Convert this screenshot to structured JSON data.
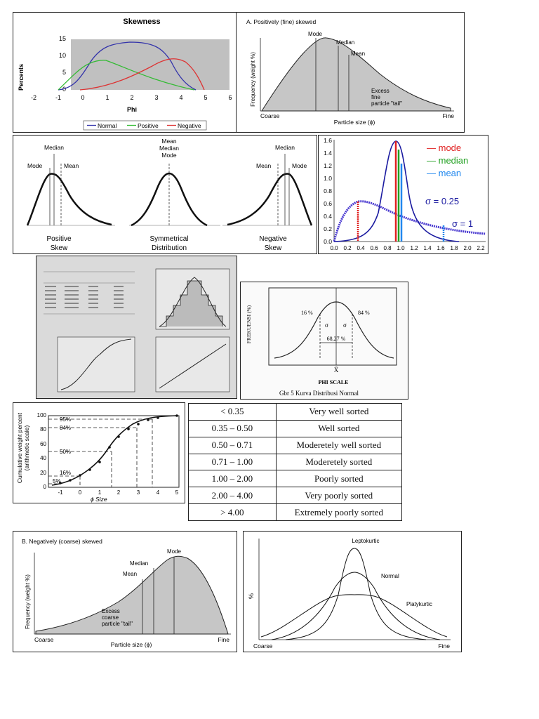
{
  "colors": {
    "normal": "#3333aa",
    "positive": "#33bb33",
    "negative": "#dd3333",
    "mode": "#e02020",
    "median": "#22a022",
    "mean": "#2288ee",
    "curve": "#1a1aa0"
  },
  "skewness_chart": {
    "title": "Skewness",
    "ylabel": "Percents",
    "xlabel": "Phi",
    "legend": [
      "Normal",
      "Positive",
      "Negative"
    ],
    "xticks": [
      "-2",
      "-1",
      "0",
      "1",
      "2",
      "3",
      "4",
      "5",
      "6"
    ],
    "yticks": [
      "0",
      "5",
      "10",
      "15"
    ]
  },
  "pos_skew_panel": {
    "title": "A.  Positively (fine) skewed",
    "ylabel": "Frequency (weight %)",
    "xlabel": "Particle size (ϕ)",
    "left": "Coarse",
    "right": "Fine",
    "mode": "Mode",
    "median": "Median",
    "mean": "Mean",
    "tail": [
      "Excess",
      "fine",
      "particle \"tail\""
    ]
  },
  "skew_types": {
    "positive": {
      "median": "Median",
      "mode": "Mode",
      "mean": "Mean",
      "caption": [
        "Positive",
        "Skew"
      ]
    },
    "symmetric": {
      "labels": [
        "Mean",
        "Median",
        "Mode"
      ],
      "caption": [
        "Symmetrical",
        "Distribution"
      ]
    },
    "negative": {
      "median": "Median",
      "mean": "Mean",
      "mode": "Mode",
      "caption": [
        "Negative",
        "Skew"
      ]
    }
  },
  "lognormal_chart": {
    "yticks": [
      "0.0",
      "0.2",
      "0.4",
      "0.6",
      "0.8",
      "1.0",
      "1.2",
      "1.4",
      "1.6"
    ],
    "xticks": [
      "0.0",
      "0.2",
      "0.4",
      "0.6",
      "0.8",
      "1.0",
      "1.2",
      "1.4",
      "1.6",
      "1.8",
      "2.0",
      "2.2"
    ],
    "legend": [
      "— mode",
      "— median",
      "— mean"
    ],
    "sigma1": "σ = 0.25",
    "sigma2": "σ = 1"
  },
  "normal_curve_panel": {
    "ylabel": "FREKUENSI (%)",
    "left_pct": "16 %",
    "right_pct": "84 %",
    "sigma": "σ",
    "mid_pct": "68,27 %",
    "mean_symbol": "X̄",
    "xlabel": "PHI  SCALE",
    "caption": "Gbr 5   Kurva Distribusi Normal"
  },
  "cumulative_chart": {
    "ylabel": [
      "Cumulative weight percent",
      "(arithmetic scale)"
    ],
    "xlabel": "ϕ Size",
    "yticks": [
      "0",
      "20",
      "40",
      "60",
      "80",
      "100"
    ],
    "xticks": [
      "-1",
      "0",
      "1",
      "2",
      "3",
      "4",
      "5"
    ],
    "percent_labels": [
      "95%",
      "84%",
      "50%",
      "16%",
      "5%"
    ]
  },
  "sorting_table": {
    "rows": [
      {
        "range": "< 0.35",
        "class": "Very well sorted"
      },
      {
        "range": "0.35 – 0.50",
        "class": "Well sorted"
      },
      {
        "range": "0.50 – 0.71",
        "class": "Moderetely well sorted"
      },
      {
        "range": "0.71 – 1.00",
        "class": "Moderetely sorted"
      },
      {
        "range": "1.00 – 2.00",
        "class": "Poorly sorted"
      },
      {
        "range": "2.00 – 4.00",
        "class": "Very poorly sorted"
      },
      {
        "range": "> 4.00",
        "class": "Extremely poorly sorted"
      }
    ]
  },
  "neg_skew_panel": {
    "title": "B.  Negatively (coarse) skewed",
    "ylabel": "Frequency (weight %)",
    "xlabel": "Particle size (ϕ)",
    "left": "Coarse",
    "right": "Fine",
    "mode": "Mode",
    "median": "Median",
    "mean": "Mean",
    "tail": [
      "Excess",
      "coarse",
      "particle \"tail\""
    ]
  },
  "kurtosis_panel": {
    "ylabel": "%",
    "lepto": "Leptokurtic",
    "normal": "Normal",
    "platy": "Platykurtic",
    "left": "Coarse",
    "right": "Fine"
  }
}
